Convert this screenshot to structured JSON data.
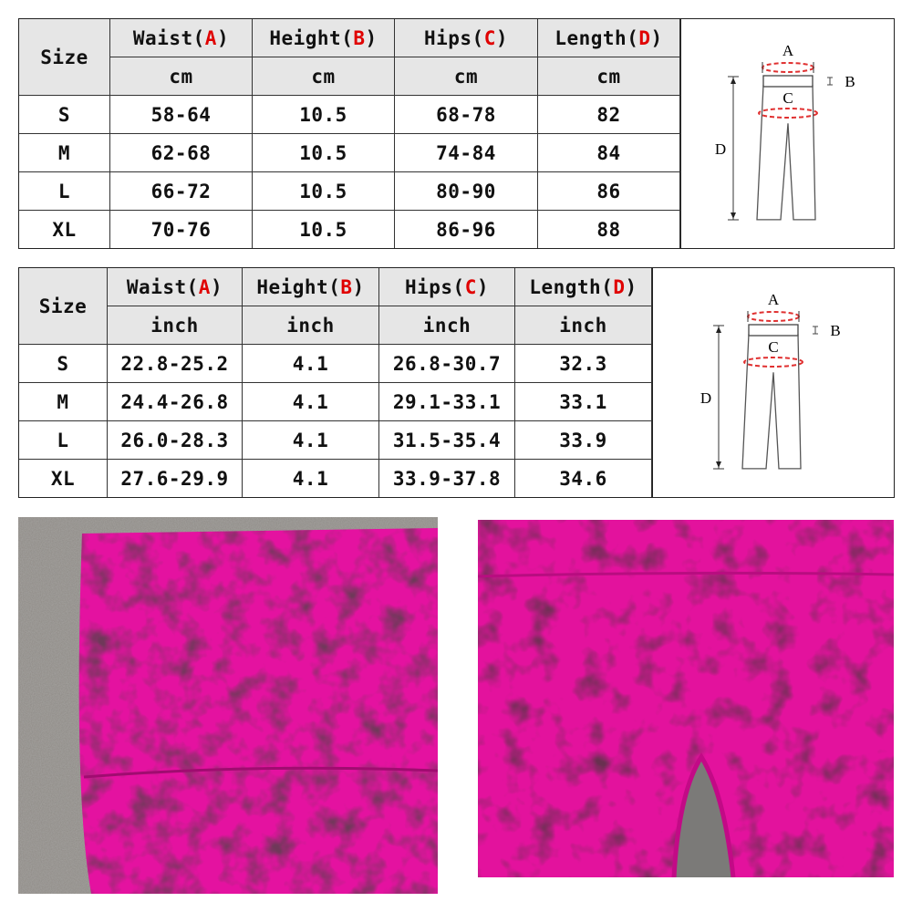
{
  "tables": [
    {
      "id": "cm",
      "size_label": "Size",
      "columns": [
        {
          "name": "Waist",
          "letter": "A"
        },
        {
          "name": "Height",
          "letter": "B"
        },
        {
          "name": "Hips",
          "letter": "C"
        },
        {
          "name": "Length",
          "letter": "D"
        }
      ],
      "unit": "cm",
      "rows": [
        [
          "S",
          "58-64",
          "10.5",
          "68-78",
          "82"
        ],
        [
          "M",
          "62-68",
          "10.5",
          "74-84",
          "84"
        ],
        [
          "L",
          "66-72",
          "10.5",
          "80-90",
          "86"
        ],
        [
          "XL",
          "70-76",
          "10.5",
          "86-96",
          "88"
        ]
      ]
    },
    {
      "id": "inch",
      "size_label": "Size",
      "columns": [
        {
          "name": "Waist",
          "letter": "A"
        },
        {
          "name": "Height",
          "letter": "B"
        },
        {
          "name": "Hips",
          "letter": "C"
        },
        {
          "name": "Length",
          "letter": "D"
        }
      ],
      "unit": "inch",
      "rows": [
        [
          "S",
          "22.8-25.2",
          "4.1",
          "26.8-30.7",
          "32.3"
        ],
        [
          "M",
          "24.4-26.8",
          "4.1",
          "29.1-33.1",
          "33.1"
        ],
        [
          "L",
          "26.0-28.3",
          "4.1",
          "31.5-35.4",
          "33.9"
        ],
        [
          "XL",
          "27.6-29.9",
          "4.1",
          "33.9-37.8",
          "34.6"
        ]
      ]
    }
  ],
  "diagram": {
    "labels": [
      "A",
      "B",
      "C",
      "D"
    ]
  },
  "colors": {
    "accent_letter": "#e00000",
    "header_bg": "#e6e6e6",
    "fabric_pink": "#e0109a",
    "fabric_dark": "#2a0a1a"
  }
}
